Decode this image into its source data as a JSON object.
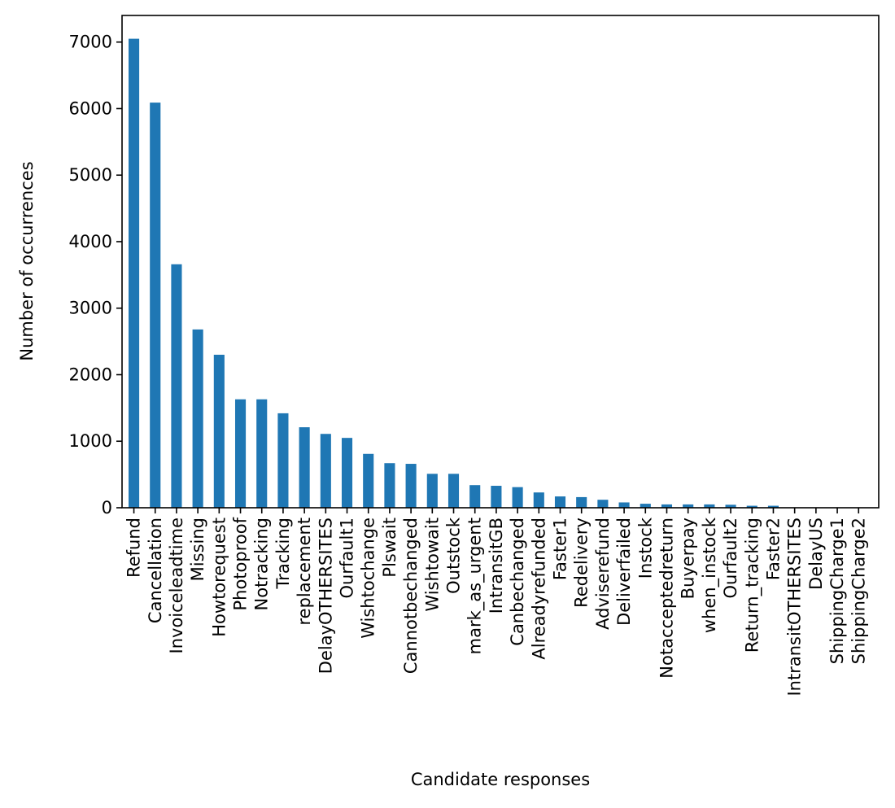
{
  "chart_data": {
    "type": "bar",
    "title": "",
    "xlabel": "Candidate responses",
    "ylabel": "Number of occurrences",
    "ylim": [
      0,
      7400
    ],
    "yticks": [
      0,
      1000,
      2000,
      3000,
      4000,
      5000,
      6000,
      7000
    ],
    "ytick_labels": [
      "0",
      "1000",
      "2000",
      "3000",
      "4000",
      "5000",
      "6000",
      "7000"
    ],
    "grid": false,
    "legend": "none",
    "bar_color": "#1f77b4",
    "categories": [
      "Refund",
      "Cancellation",
      "Invoiceleadtime",
      "Missing",
      "Howtorequest",
      "Photoproof",
      "Notracking",
      "Tracking",
      "replacement",
      "DelayOTHERSITES",
      "Ourfault1",
      "Wishtochange",
      "Plswait",
      "Cannotbechanged",
      "Wishtowait",
      "Outstock",
      "mark_as_urgent",
      "IntransitGB",
      "Canbechanged",
      "Alreadyrefunded",
      "Faster1",
      "Redelivery",
      "Adviserefund",
      "Deliverfailed",
      "Instock",
      "Notacceptedreturn",
      "Buyerpay",
      "when_instock",
      "Ourfault2",
      "Return_tracking",
      "Faster2",
      "IntransitOTHERSITES",
      "DelayUS",
      "ShippingCharge1",
      "ShippingCharge2"
    ],
    "values": [
      7050,
      6090,
      3660,
      2680,
      2300,
      1630,
      1630,
      1420,
      1210,
      1110,
      1050,
      810,
      670,
      660,
      510,
      510,
      340,
      330,
      310,
      230,
      170,
      160,
      120,
      80,
      60,
      50,
      50,
      50,
      45,
      30,
      30,
      0,
      0,
      0,
      0
    ]
  }
}
